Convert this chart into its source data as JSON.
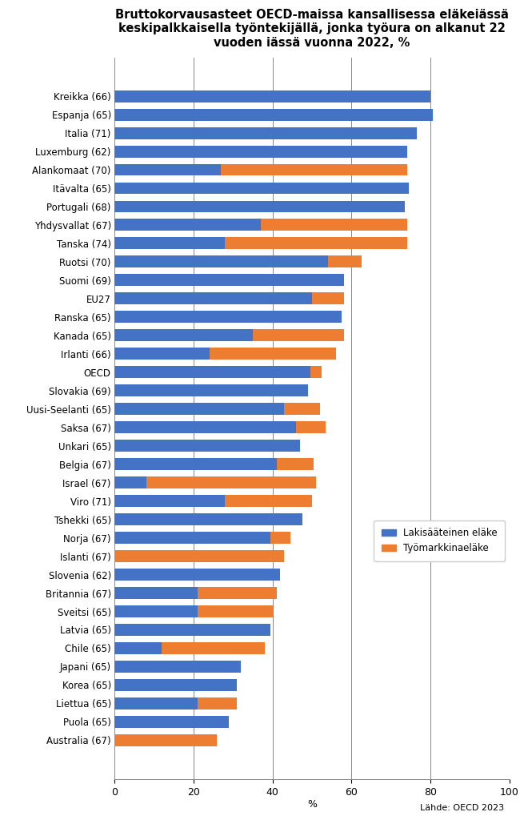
{
  "title": "Bruttokorvausasteet OECD-maissa kansallisessa eläkeiässä\nkeskipalkkaisella työntekijällä, jonka työura on alkanut 22\nvuoden iässä vuonna 2022, %",
  "categories": [
    "Kreikka (66)",
    "Espanja (65)",
    "Italia (71)",
    "Luxemburg (62)",
    "Alankomaat (70)",
    "Itävalta (65)",
    "Portugali (68)",
    "Yhdysvallat (67)",
    "Tanska (74)",
    "Ruotsi (70)",
    "Suomi (69)",
    "EU27",
    "Ranska (65)",
    "Kanada (65)",
    "Irlanti (66)",
    "OECD",
    "Slovakia (69)",
    "Uusi-Seelanti (65)",
    "Saksa (67)",
    "Unkari (65)",
    "Belgia (67)",
    "Israel (67)",
    "Viro (71)",
    "Tshekki (65)",
    "Norja (67)",
    "Islanti (67)",
    "Slovenia (62)",
    "Britannia (67)",
    "Sveitsi (65)",
    "Latvia (65)",
    "Chile (65)",
    "Japani (65)",
    "Korea (65)",
    "Liettua (65)",
    "Puola (65)",
    "Australia (67)"
  ],
  "blue_values": [
    80.0,
    80.5,
    76.5,
    74.0,
    27.0,
    74.5,
    73.5,
    37.0,
    28.0,
    54.0,
    58.0,
    50.0,
    57.5,
    35.0,
    24.0,
    49.5,
    49.0,
    43.0,
    46.0,
    47.0,
    41.0,
    8.0,
    28.0,
    47.5,
    39.5,
    0.0,
    42.0,
    21.0,
    21.0,
    39.5,
    12.0,
    32.0,
    31.0,
    21.0,
    29.0,
    0.0
  ],
  "orange_values": [
    0.0,
    0.0,
    0.0,
    0.0,
    47.0,
    0.0,
    0.0,
    37.0,
    46.0,
    8.5,
    0.0,
    8.0,
    0.0,
    23.0,
    32.0,
    3.0,
    0.0,
    9.0,
    7.5,
    0.0,
    9.5,
    43.0,
    22.0,
    0.0,
    5.0,
    43.0,
    0.0,
    20.0,
    19.0,
    0.0,
    26.0,
    0.0,
    0.0,
    10.0,
    0.0,
    26.0
  ],
  "blue_color": "#4472C4",
  "orange_color": "#ED7D31",
  "legend_labels": [
    "Lakisääteinen eläke",
    "Työmarkkinaeläke"
  ],
  "xlabel": "%",
  "source_text": "Lähde: OECD 2023",
  "xlim": [
    0,
    100
  ],
  "xticks": [
    0,
    20,
    40,
    60,
    80,
    100
  ],
  "background_color": "#FFFFFF",
  "title_fontsize": 10.5,
  "label_fontsize": 8.5,
  "tick_fontsize": 9
}
